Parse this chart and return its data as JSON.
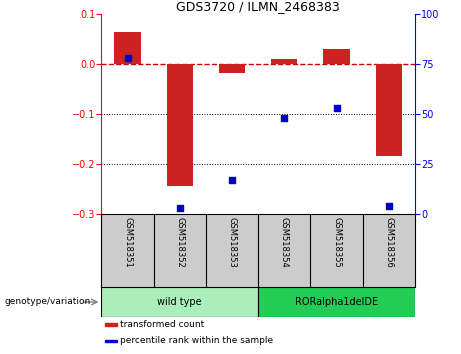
{
  "title": "GDS3720 / ILMN_2468383",
  "samples": [
    "GSM518351",
    "GSM518352",
    "GSM518353",
    "GSM518354",
    "GSM518355",
    "GSM518356"
  ],
  "transformed_count": [
    0.065,
    -0.245,
    -0.018,
    0.01,
    0.03,
    -0.185
  ],
  "percentile_rank": [
    78,
    3,
    17,
    48,
    53,
    4
  ],
  "ylim_left": [
    -0.3,
    0.1
  ],
  "ylim_right": [
    0,
    100
  ],
  "yticks_left": [
    0.1,
    0.0,
    -0.1,
    -0.2,
    -0.3
  ],
  "yticks_right": [
    100,
    75,
    50,
    25,
    0
  ],
  "bar_color": "#CC2222",
  "dot_color": "#0000CC",
  "dashed_line_color": "#CC0000",
  "groups": [
    {
      "label": "wild type",
      "samples": [
        0,
        1,
        2
      ],
      "color": "#AAEEBB"
    },
    {
      "label": "RORalpha1delDE",
      "samples": [
        3,
        4,
        5
      ],
      "color": "#22CC55"
    }
  ],
  "group_label_prefix": "genotype/variation",
  "legend_items": [
    {
      "label": "transformed count",
      "color": "#CC2222"
    },
    {
      "label": "percentile rank within the sample",
      "color": "#0000CC"
    }
  ],
  "background_color": "#ffffff",
  "tick_label_area_color": "#CCCCCC",
  "bar_width": 0.5,
  "dot_size": 25
}
